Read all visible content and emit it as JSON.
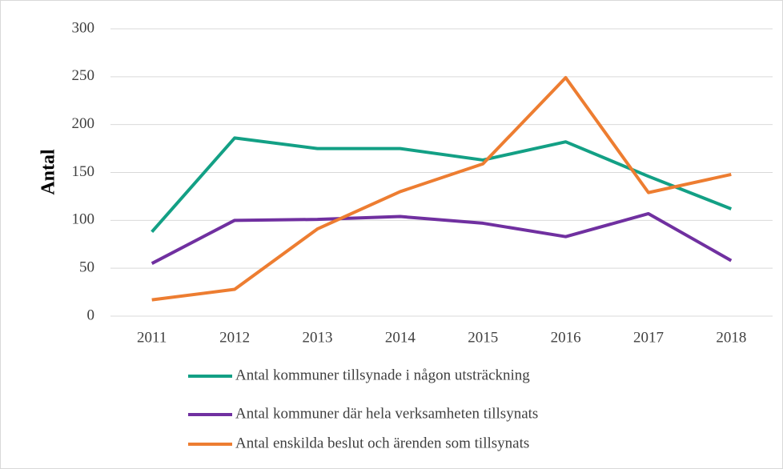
{
  "chart_data": {
    "type": "line",
    "y_label": "Antal",
    "categories": [
      "2011",
      "2012",
      "2013",
      "2014",
      "2015",
      "2016",
      "2017",
      "2018"
    ],
    "series": [
      {
        "name": "Antal kommuner tillsynade i någon utsträckning",
        "color": "#13a085",
        "values": [
          88,
          186,
          175,
          175,
          163,
          182,
          146,
          112
        ]
      },
      {
        "name": "Antal kommuner där hela verksamheten tillsynats",
        "color": "#7030a0",
        "values": [
          55,
          100,
          101,
          104,
          97,
          83,
          107,
          58
        ]
      },
      {
        "name": "Antal enskilda beslut och ärenden som tillsynats",
        "color": "#ed7d31",
        "values": [
          17,
          28,
          91,
          130,
          159,
          249,
          129,
          148
        ]
      }
    ],
    "ylim": [
      0,
      300
    ],
    "yticks": [
      0,
      50,
      100,
      150,
      200,
      250,
      300
    ],
    "grid": true,
    "legend": "bottom"
  }
}
